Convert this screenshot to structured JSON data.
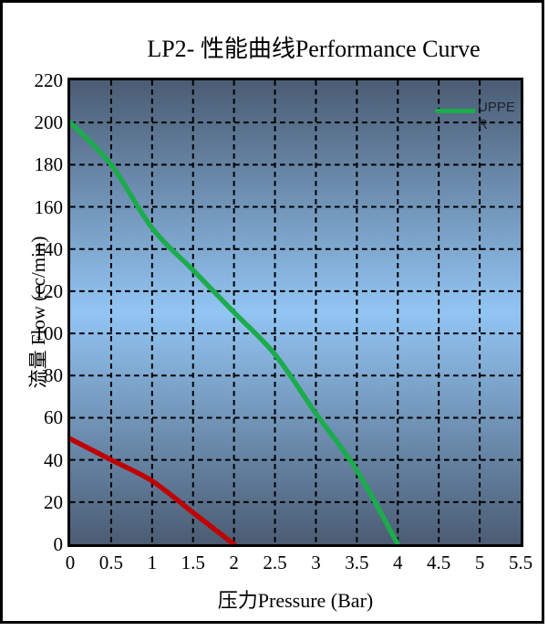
{
  "frame": {
    "border_color": "#000000",
    "background": "#ffffff"
  },
  "chart_data": {
    "type": "line",
    "title": "LP2- 性能曲线Performance Curve",
    "xlabel": "压力Pressure (Bar)",
    "ylabel": "流量 Flow (cc/min)",
    "xlim": [
      0,
      5.5
    ],
    "ylim": [
      0,
      220
    ],
    "x_ticks": [
      "0",
      "0.5",
      "1",
      "1.5",
      "2",
      "2.5",
      "3",
      "3.5",
      "4",
      "4.5",
      "5",
      "5.5"
    ],
    "y_ticks": [
      "220",
      "200",
      "180",
      "160",
      "140",
      "120",
      "100",
      "80",
      "60",
      "40",
      "20",
      "0"
    ],
    "grid": {
      "style": "dashed",
      "color": "#000000",
      "x_interval": 0.5,
      "y_interval": 20
    },
    "plot_background": {
      "type": "vertical-gradient",
      "stops": [
        "#4b5c73",
        "#92c5f3",
        "#4b5c73"
      ]
    },
    "legend": {
      "position": "top-right-inside",
      "entries": [
        {
          "label": "UPPER",
          "color": "#1cab4d"
        }
      ]
    },
    "series": [
      {
        "legend_label": "UPPER",
        "color": "#1cab4d",
        "x": [
          0,
          0.5,
          1,
          1.5,
          2,
          2.5,
          3,
          3.5,
          4
        ],
        "y": [
          200,
          180,
          150,
          130,
          110,
          90,
          62,
          35,
          0
        ]
      },
      {
        "legend_label": null,
        "color": "#c00000",
        "x": [
          0,
          0.5,
          1,
          1.5,
          2
        ],
        "y": [
          50,
          40,
          30,
          15,
          0
        ]
      }
    ]
  }
}
